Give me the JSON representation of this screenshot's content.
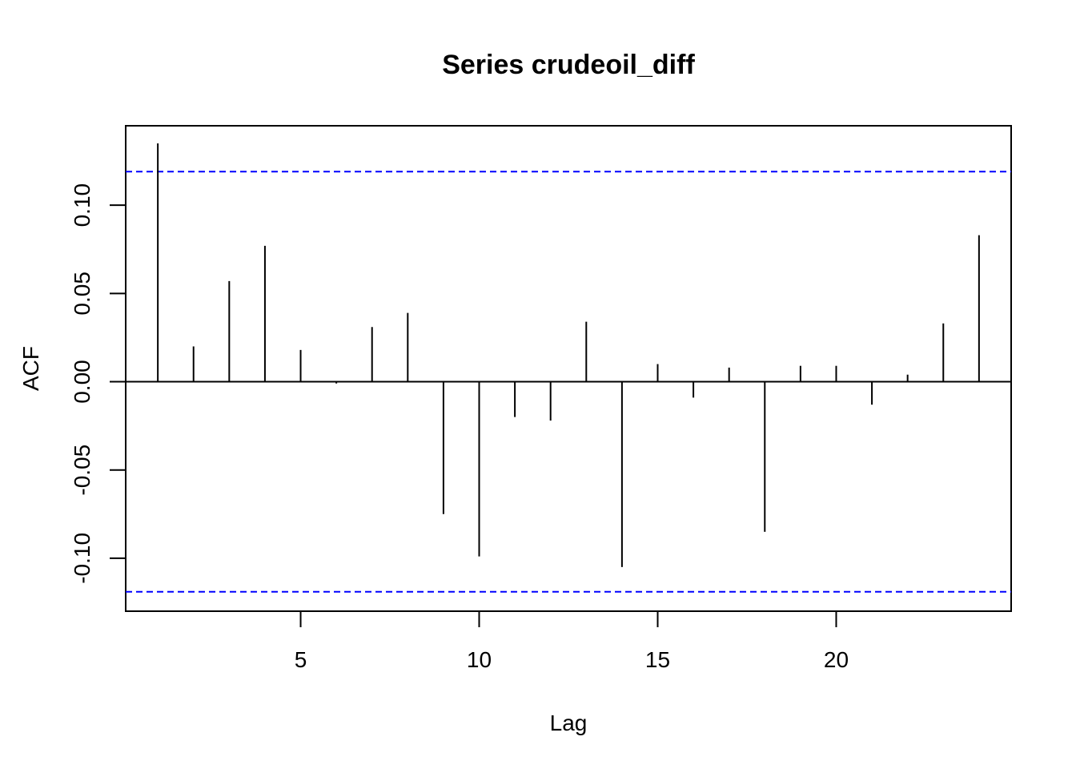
{
  "chart_data": {
    "type": "bar",
    "title": "Series crudeoil_diff",
    "xlabel": "Lag",
    "ylabel": "ACF",
    "xlim": [
      0.1,
      24.9
    ],
    "ylim": [
      -0.13,
      0.145
    ],
    "x_ticks": [
      5,
      10,
      15,
      20
    ],
    "x_tick_labels": [
      "5",
      "10",
      "15",
      "20"
    ],
    "y_ticks": [
      -0.1,
      -0.05,
      0.0,
      0.05,
      0.1
    ],
    "y_tick_labels": [
      "-0.10",
      "-0.05",
      "0.00",
      "0.05",
      "0.10"
    ],
    "grid": false,
    "legend": "none",
    "confidence_band": {
      "upper": 0.119,
      "lower": -0.119,
      "color": "#0000ff",
      "style": "dashed"
    },
    "lags": [
      1,
      2,
      3,
      4,
      5,
      6,
      7,
      8,
      9,
      10,
      11,
      12,
      13,
      14,
      15,
      16,
      17,
      18,
      19,
      20,
      21,
      22,
      23,
      24
    ],
    "values": [
      0.135,
      0.02,
      0.057,
      0.077,
      0.018,
      -0.001,
      0.031,
      0.039,
      -0.075,
      -0.099,
      -0.02,
      -0.022,
      0.034,
      -0.105,
      0.01,
      -0.009,
      0.008,
      -0.085,
      0.009,
      0.009,
      -0.013,
      0.004,
      0.033,
      0.083
    ]
  }
}
